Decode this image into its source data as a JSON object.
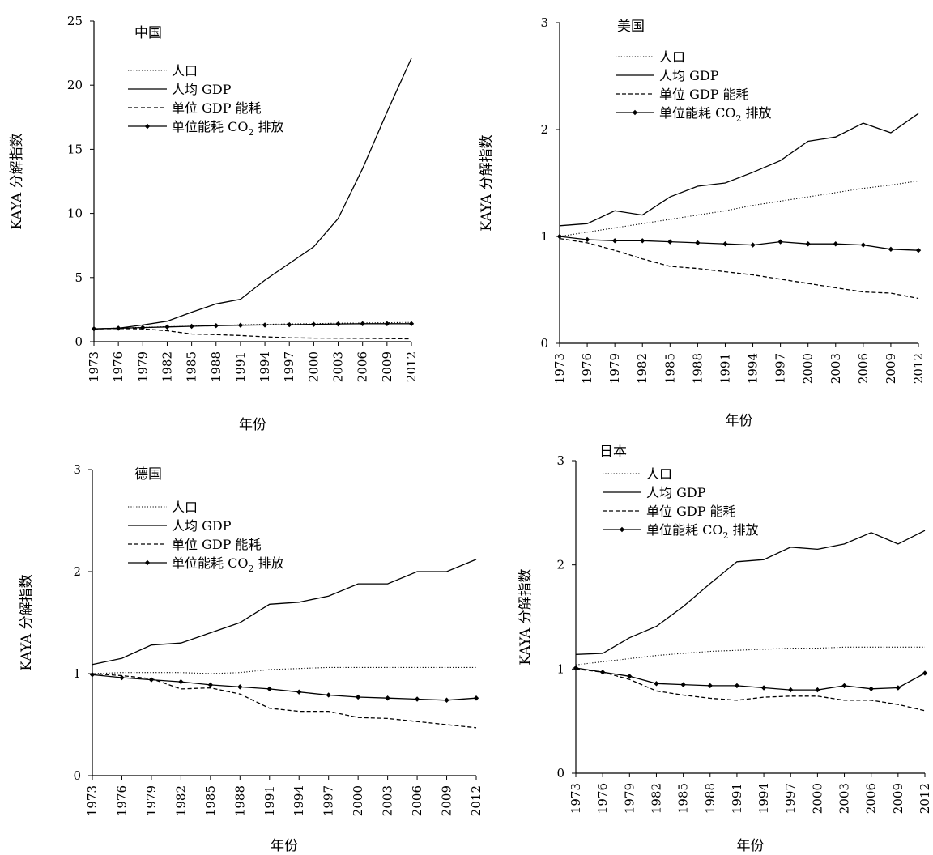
{
  "chart_data": [
    {
      "type": "line",
      "title": "中国",
      "xlabel": "年份",
      "ylabel": "KAYA 分解指数",
      "ylim": [
        0,
        25
      ],
      "yticks": [
        0,
        5,
        10,
        15,
        20,
        25
      ],
      "xlim": [
        1973,
        2012
      ],
      "xticks": [
        "1973",
        "1976",
        "1979",
        "1982",
        "1985",
        "1988",
        "1991",
        "1994",
        "1997",
        "2000",
        "2003",
        "2006",
        "2009",
        "2012"
      ],
      "grid": false,
      "legend": "top-left",
      "series": [
        {
          "name": "人口",
          "style": "dotted",
          "x": [
            1973,
            1976,
            1979,
            1982,
            1985,
            1988,
            1991,
            1994,
            1997,
            2000,
            2003,
            2006,
            2009,
            2012
          ],
          "y": [
            1.0,
            1.06,
            1.12,
            1.17,
            1.21,
            1.26,
            1.31,
            1.35,
            1.38,
            1.41,
            1.44,
            1.46,
            1.48,
            1.5
          ]
        },
        {
          "name": "人均 GDP",
          "style": "solid",
          "x": [
            1973,
            1976,
            1979,
            1982,
            1985,
            1988,
            1991,
            1994,
            1997,
            2000,
            2003,
            2006,
            2009,
            2012
          ],
          "y": [
            1.0,
            1.05,
            1.3,
            1.6,
            2.3,
            2.95,
            3.3,
            4.8,
            6.1,
            7.4,
            9.6,
            13.5,
            17.9,
            22.1
          ]
        },
        {
          "name": "单位 GDP 能耗",
          "style": "dashed",
          "x": [
            1973,
            1976,
            1979,
            1982,
            1985,
            1988,
            1991,
            1994,
            1997,
            2000,
            2003,
            2006,
            2009,
            2012
          ],
          "y": [
            1.0,
            1.02,
            1.0,
            0.85,
            0.6,
            0.55,
            0.48,
            0.38,
            0.3,
            0.28,
            0.27,
            0.26,
            0.24,
            0.22
          ]
        },
        {
          "name": "单位能耗 CO2 排放",
          "style": "solid-marker",
          "x": [
            1973,
            1976,
            1979,
            1982,
            1985,
            1988,
            1991,
            1994,
            1997,
            2000,
            2003,
            2006,
            2009,
            2012
          ],
          "y": [
            1.0,
            1.05,
            1.1,
            1.15,
            1.2,
            1.25,
            1.28,
            1.3,
            1.32,
            1.35,
            1.38,
            1.4,
            1.4,
            1.4
          ]
        }
      ]
    },
    {
      "type": "line",
      "title": "美国",
      "xlabel": "年份",
      "ylabel": "KAYA 分解指数",
      "ylim": [
        0,
        3
      ],
      "yticks": [
        0,
        1,
        2,
        3
      ],
      "xlim": [
        1973,
        2012
      ],
      "xticks": [
        "1973",
        "1976",
        "1979",
        "1982",
        "1985",
        "1988",
        "1991",
        "1994",
        "1997",
        "2000",
        "2003",
        "2006",
        "2009",
        "2012"
      ],
      "grid": false,
      "legend": "top-left",
      "series": [
        {
          "name": "人口",
          "style": "dotted",
          "x": [
            1973,
            1976,
            1979,
            1982,
            1985,
            1988,
            1991,
            1994,
            1997,
            2000,
            2003,
            2006,
            2009,
            2012
          ],
          "y": [
            1.0,
            1.04,
            1.08,
            1.12,
            1.16,
            1.2,
            1.24,
            1.29,
            1.33,
            1.37,
            1.41,
            1.45,
            1.48,
            1.52
          ]
        },
        {
          "name": "人均 GDP",
          "style": "solid",
          "x": [
            1973,
            1976,
            1979,
            1982,
            1985,
            1988,
            1991,
            1994,
            1997,
            2000,
            2003,
            2006,
            2009,
            2012
          ],
          "y": [
            1.1,
            1.12,
            1.24,
            1.2,
            1.37,
            1.47,
            1.5,
            1.6,
            1.71,
            1.89,
            1.93,
            2.06,
            1.97,
            2.15
          ]
        },
        {
          "name": "单位 GDP 能耗",
          "style": "dashed",
          "x": [
            1973,
            1976,
            1979,
            1982,
            1985,
            1988,
            1991,
            1994,
            1997,
            2000,
            2003,
            2006,
            2009,
            2012
          ],
          "y": [
            0.98,
            0.94,
            0.87,
            0.79,
            0.72,
            0.7,
            0.67,
            0.64,
            0.6,
            0.56,
            0.52,
            0.48,
            0.47,
            0.42
          ]
        },
        {
          "name": "单位能耗 CO2 排放",
          "style": "solid-marker",
          "x": [
            1973,
            1976,
            1979,
            1982,
            1985,
            1988,
            1991,
            1994,
            1997,
            2000,
            2003,
            2006,
            2009,
            2012
          ],
          "y": [
            1.0,
            0.97,
            0.96,
            0.96,
            0.95,
            0.94,
            0.93,
            0.92,
            0.95,
            0.93,
            0.93,
            0.92,
            0.88,
            0.87
          ]
        }
      ]
    },
    {
      "type": "line",
      "title": "德国",
      "xlabel": "年份",
      "ylabel": "KAYA 分解指数",
      "ylim": [
        0,
        3
      ],
      "yticks": [
        0,
        1,
        2,
        3
      ],
      "xlim": [
        1973,
        2012
      ],
      "xticks": [
        "1973",
        "1976",
        "1979",
        "1982",
        "1985",
        "1988",
        "1991",
        "1994",
        "1997",
        "2000",
        "2003",
        "2006",
        "2009",
        "2012"
      ],
      "grid": false,
      "legend": "top-left",
      "series": [
        {
          "name": "人口",
          "style": "dotted",
          "x": [
            1973,
            1976,
            1979,
            1982,
            1985,
            1988,
            1991,
            1994,
            1997,
            2000,
            2003,
            2006,
            2009,
            2012
          ],
          "y": [
            1.0,
            1.01,
            1.01,
            1.01,
            1.0,
            1.01,
            1.04,
            1.05,
            1.06,
            1.06,
            1.06,
            1.06,
            1.06,
            1.06
          ]
        },
        {
          "name": "人均 GDP",
          "style": "solid",
          "x": [
            1973,
            1976,
            1979,
            1982,
            1985,
            1988,
            1991,
            1994,
            1997,
            2000,
            2003,
            2006,
            2009,
            2012
          ],
          "y": [
            1.09,
            1.15,
            1.28,
            1.3,
            1.4,
            1.5,
            1.68,
            1.7,
            1.76,
            1.88,
            1.88,
            2.0,
            2.0,
            2.12
          ]
        },
        {
          "name": "单位 GDP 能耗",
          "style": "dashed",
          "x": [
            1973,
            1976,
            1979,
            1982,
            1985,
            1988,
            1991,
            1994,
            1997,
            2000,
            2003,
            2006,
            2009,
            2012
          ],
          "y": [
            1.0,
            0.98,
            0.95,
            0.85,
            0.86,
            0.8,
            0.66,
            0.63,
            0.63,
            0.57,
            0.56,
            0.53,
            0.5,
            0.47
          ]
        },
        {
          "name": "单位能耗 CO2 排放",
          "style": "solid-marker",
          "x": [
            1973,
            1976,
            1979,
            1982,
            1985,
            1988,
            1991,
            1994,
            1997,
            2000,
            2003,
            2006,
            2009,
            2012
          ],
          "y": [
            0.99,
            0.96,
            0.94,
            0.92,
            0.89,
            0.87,
            0.85,
            0.82,
            0.79,
            0.77,
            0.76,
            0.75,
            0.74,
            0.76
          ]
        }
      ]
    },
    {
      "type": "line",
      "title": "日本",
      "xlabel": "年份",
      "ylabel": "KAYA 分解指数",
      "ylim": [
        0,
        3
      ],
      "yticks": [
        0,
        1,
        2,
        3
      ],
      "xlim": [
        1973,
        2012
      ],
      "xticks": [
        "1973",
        "1976",
        "1979",
        "1982",
        "1985",
        "1988",
        "1991",
        "1994",
        "1997",
        "2000",
        "2003",
        "2006",
        "2009",
        "2012"
      ],
      "grid": false,
      "legend": "top-left",
      "series": [
        {
          "name": "人口",
          "style": "dotted",
          "x": [
            1973,
            1976,
            1979,
            1982,
            1985,
            1988,
            1991,
            1994,
            1997,
            2000,
            2003,
            2006,
            2009,
            2012
          ],
          "y": [
            1.04,
            1.07,
            1.1,
            1.13,
            1.15,
            1.17,
            1.18,
            1.19,
            1.2,
            1.2,
            1.21,
            1.21,
            1.21,
            1.21
          ]
        },
        {
          "name": "人均 GDP",
          "style": "solid",
          "x": [
            1973,
            1976,
            1979,
            1982,
            1985,
            1988,
            1991,
            1994,
            1997,
            2000,
            2003,
            2006,
            2009,
            2012
          ],
          "y": [
            1.14,
            1.15,
            1.3,
            1.41,
            1.6,
            1.82,
            2.03,
            2.05,
            2.17,
            2.15,
            2.2,
            2.31,
            2.2,
            2.33
          ]
        },
        {
          "name": "单位 GDP 能耗",
          "style": "dashed",
          "x": [
            1973,
            1976,
            1979,
            1982,
            1985,
            1988,
            1991,
            1994,
            1997,
            2000,
            2003,
            2006,
            2009,
            2012
          ],
          "y": [
            1.0,
            0.97,
            0.9,
            0.79,
            0.75,
            0.72,
            0.7,
            0.73,
            0.74,
            0.74,
            0.7,
            0.7,
            0.66,
            0.6
          ]
        },
        {
          "name": "单位能耗 CO2 排放",
          "style": "solid-marker",
          "x": [
            1973,
            1976,
            1979,
            1982,
            1985,
            1988,
            1991,
            1994,
            1997,
            2000,
            2003,
            2006,
            2009,
            2012
          ],
          "y": [
            1.01,
            0.97,
            0.93,
            0.86,
            0.85,
            0.84,
            0.84,
            0.82,
            0.8,
            0.8,
            0.84,
            0.81,
            0.82,
            0.96
          ]
        }
      ]
    }
  ]
}
